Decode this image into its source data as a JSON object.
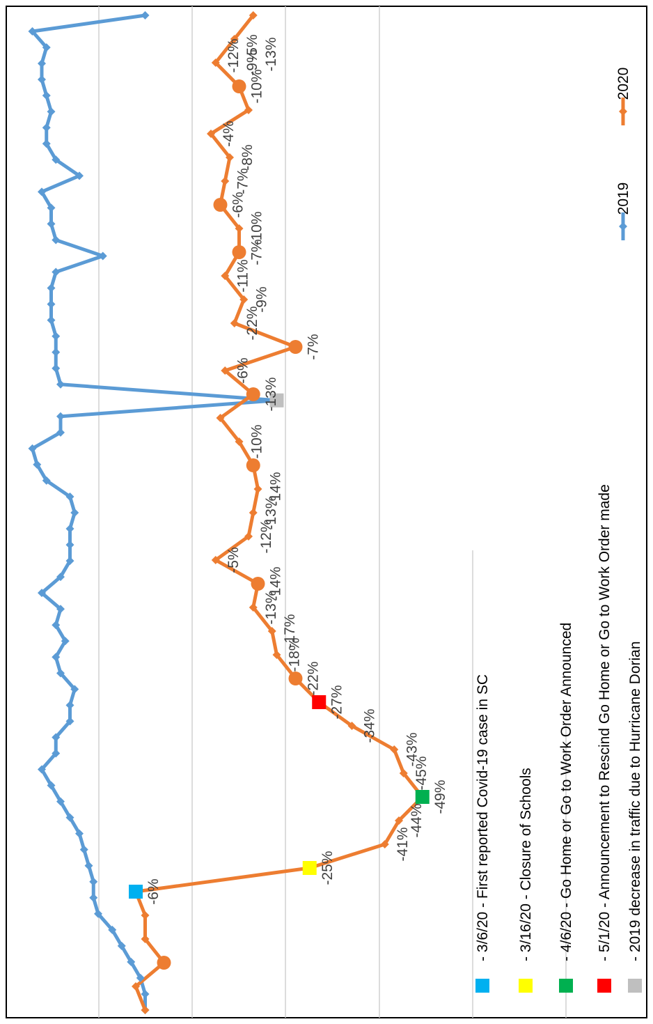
{
  "chart_data": {
    "type": "line",
    "title": "",
    "xlabel": "",
    "ylabel": "",
    "grid": true,
    "orientation": "rotated",
    "legend_position": "right",
    "series": [
      {
        "name": "2019",
        "color": "#5b9bd5",
        "values": [
          10,
          10,
          11,
          13,
          15,
          17,
          20,
          21,
          21,
          22,
          23,
          24,
          26,
          28,
          30,
          32,
          29,
          29,
          26,
          26,
          25,
          28,
          29,
          27,
          29,
          28,
          32,
          28,
          26,
          26,
          26,
          25,
          26,
          31,
          33,
          34,
          28,
          28,
          -18,
          28,
          29,
          29,
          29,
          30,
          30,
          30,
          29,
          19,
          29,
          30,
          30,
          32,
          24,
          29,
          31,
          31,
          30,
          31,
          32,
          32,
          31,
          34,
          10
        ]
      },
      {
        "name": "2020",
        "color": "#ed7d31",
        "values": [
          10,
          12,
          6,
          10,
          10,
          12,
          -25,
          -41,
          -44,
          -49,
          -45,
          -43,
          -34,
          -27,
          -22,
          -18,
          -17,
          -13,
          -14,
          -5,
          -12,
          -13,
          -14,
          -13,
          -10,
          -6,
          -13,
          -7,
          -22,
          -9,
          -11,
          -7,
          -10,
          -10,
          -6,
          -7,
          -8,
          -4,
          -12,
          -10,
          -5,
          -9,
          -13
        ]
      }
    ],
    "data_labels_2020": [
      "-6%",
      "-25%",
      "-41%",
      "-44%",
      "-49%",
      "-45%",
      "-43%",
      "-34%",
      "-27%",
      "-22%",
      "-18%",
      "-17%",
      "-13%",
      "-14%",
      "-5%",
      "-12%",
      "-13%",
      "-14%",
      "-10%",
      "-13%",
      "-6%",
      "-7%",
      "-22%",
      "-9%",
      "-11%",
      "-7%",
      "-10%",
      "-6%",
      "-7%",
      "-8%",
      "-4%",
      "-10%",
      "-12%",
      "-5%",
      "-9%",
      "-13%"
    ],
    "event_markers": [
      {
        "series": "2020",
        "color": "#00b0f0",
        "label": "- 3/6/20 - First reported Covid-19 case in SC"
      },
      {
        "series": "2020",
        "color": "#ffff00",
        "label": "- 3/16/20 - Closure of Schools"
      },
      {
        "series": "2020",
        "color": "#00b050",
        "label": "- 4/6/20 - Go Home or Go to Work Order Announced"
      },
      {
        "series": "2020",
        "color": "#ff0000",
        "label": "- 5/1/20 - Announcement to Rescind Go Home or Go to Work Order made"
      },
      {
        "series": "2019",
        "color": "#bfbfbf",
        "label": "- 2019 decrease in traffic due to Hurricane Dorian"
      }
    ]
  }
}
